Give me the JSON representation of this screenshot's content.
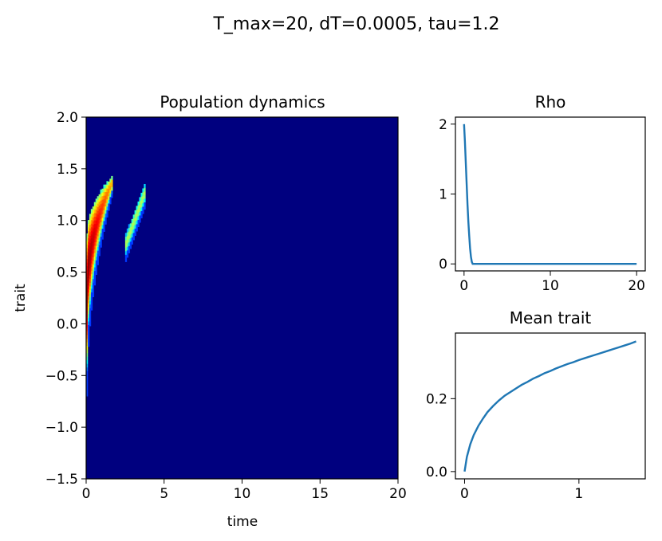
{
  "suptitle": "T_max=20, dT=0.0005, tau=1.2",
  "colors": {
    "heat_bg": "#00007f",
    "line": "#1f77b4"
  },
  "chart_data": [
    {
      "type": "heatmap",
      "title": "Population dynamics",
      "xlabel": "time",
      "ylabel": "trait",
      "xlim": [
        0,
        20
      ],
      "ylim": [
        -1.5,
        2.0
      ],
      "xticks": [
        "0",
        "5",
        "10",
        "15",
        "20"
      ],
      "yticks": [
        "−1.5",
        "−1.0",
        "−0.5",
        "0.0",
        "0.5",
        "1.0",
        "1.5",
        "2.0"
      ],
      "colormap": "jet",
      "background_value": 0,
      "streaks": [
        {
          "x_start": 0.0,
          "x_end": 1.65,
          "y_low_start": -0.7,
          "y_high_start": 0.85,
          "y_low_end": 1.25,
          "y_high_end": 1.42,
          "peak": 1.0
        },
        {
          "x_start": 2.5,
          "x_end": 3.8,
          "y_low_start": 0.6,
          "y_high_start": 0.85,
          "y_low_end": 1.15,
          "y_high_end": 1.37,
          "peak": 0.55
        }
      ]
    },
    {
      "type": "line",
      "title": "Rho",
      "xlabel": "",
      "ylabel": "",
      "xlim": [
        -1,
        21
      ],
      "ylim": [
        -0.1,
        2.1
      ],
      "xticks": [
        "0",
        "10",
        "20"
      ],
      "yticks": [
        "0",
        "1",
        "2"
      ],
      "series": [
        {
          "x": [
            0,
            0.1,
            0.2,
            0.3,
            0.4,
            0.5,
            0.6,
            0.7,
            0.8,
            0.9,
            1.0,
            1.2,
            1.5,
            2,
            5,
            10,
            15,
            20
          ],
          "y": [
            2.0,
            1.75,
            1.45,
            1.15,
            0.85,
            0.6,
            0.4,
            0.22,
            0.1,
            0.03,
            0.0,
            0.0,
            0.0,
            0.0,
            0.0,
            0.0,
            0.0,
            0.0
          ]
        }
      ]
    },
    {
      "type": "line",
      "title": "Mean trait",
      "xlabel": "",
      "ylabel": "",
      "xlim": [
        -0.08,
        1.58
      ],
      "ylim": [
        -0.02,
        0.38
      ],
      "xticks": [
        "0",
        "1"
      ],
      "yticks": [
        "0.0",
        "0.2"
      ],
      "series": [
        {
          "x": [
            0,
            0.02,
            0.05,
            0.08,
            0.12,
            0.16,
            0.2,
            0.25,
            0.3,
            0.35,
            0.4,
            0.45,
            0.5,
            0.55,
            0.6,
            0.65,
            0.7,
            0.75,
            0.8,
            0.85,
            0.9,
            0.95,
            1.0,
            1.05,
            1.1,
            1.15,
            1.2,
            1.25,
            1.3,
            1.35,
            1.4,
            1.45,
            1.5
          ],
          "y": [
            0.0,
            0.04,
            0.075,
            0.1,
            0.125,
            0.145,
            0.163,
            0.18,
            0.195,
            0.208,
            0.218,
            0.228,
            0.238,
            0.246,
            0.255,
            0.262,
            0.27,
            0.276,
            0.283,
            0.289,
            0.295,
            0.3,
            0.306,
            0.311,
            0.316,
            0.321,
            0.326,
            0.331,
            0.336,
            0.341,
            0.346,
            0.351,
            0.357
          ]
        }
      ]
    }
  ]
}
